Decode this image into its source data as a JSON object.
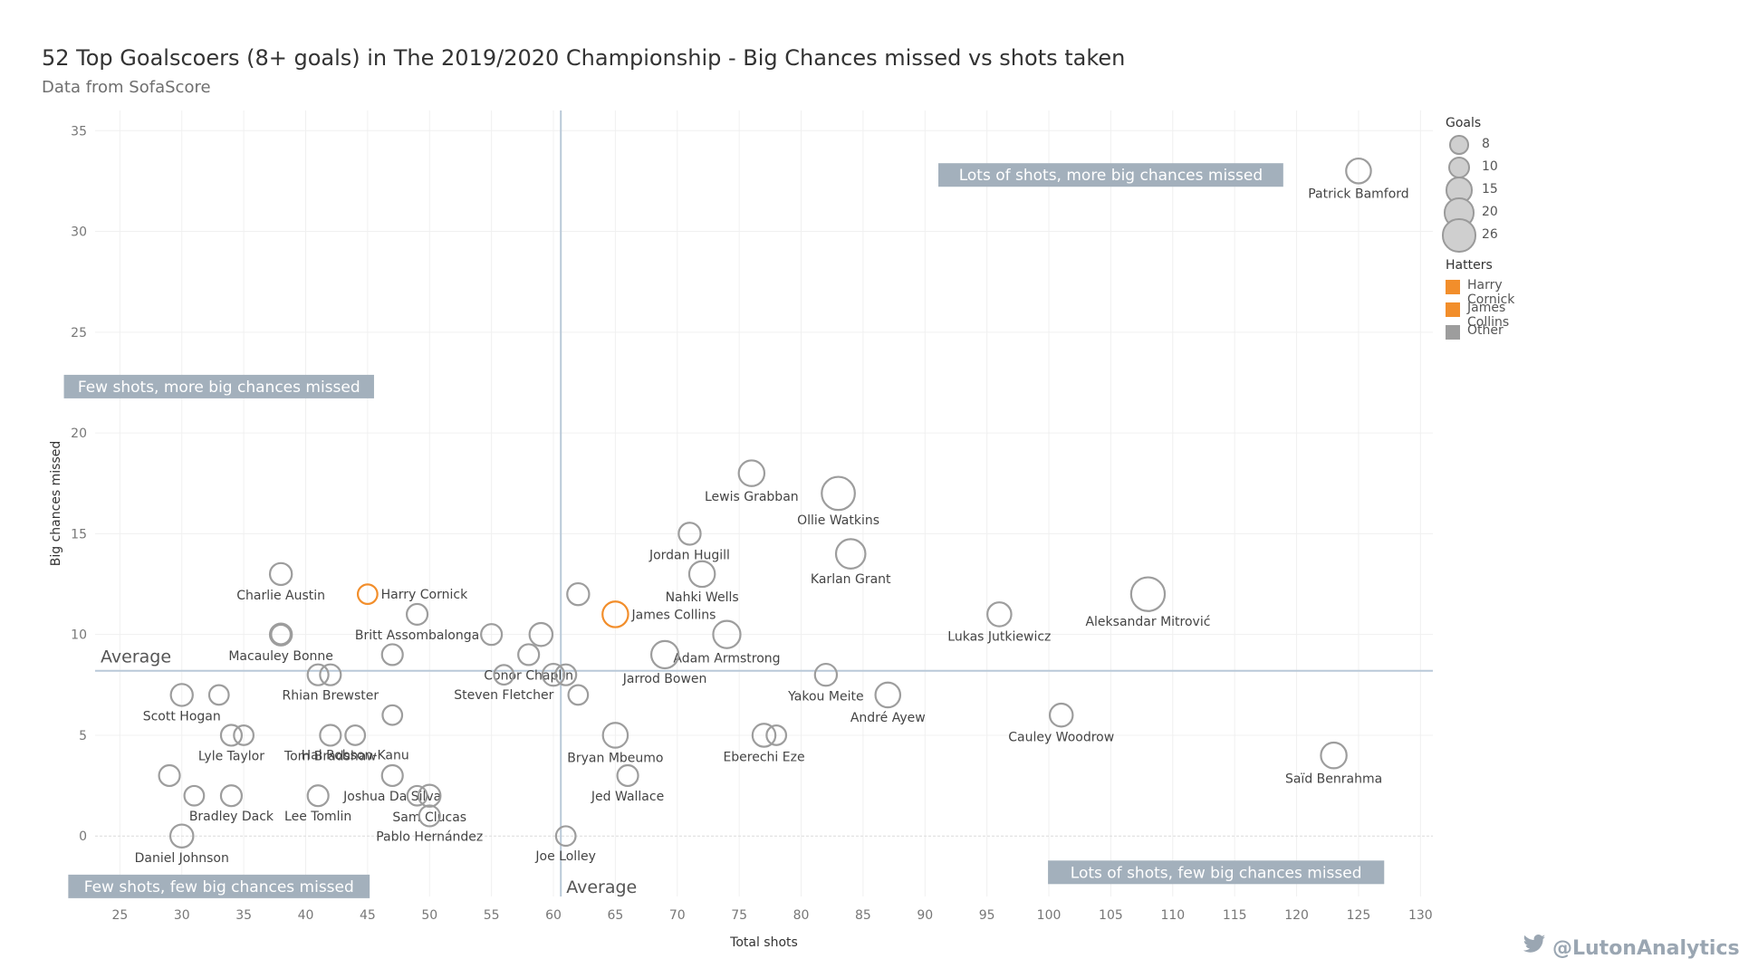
{
  "title": "52 Top Goalscoers (8+ goals) in The 2019/2020 Championship - Big Chances missed vs shots taken",
  "subtitle": "Data from SofaScore",
  "credit": "@LutonAnalytics",
  "legend": {
    "size_title": "Goals",
    "sizes": [
      {
        "label": "8",
        "goals": 8
      },
      {
        "label": "10",
        "goals": 10
      },
      {
        "label": "15",
        "goals": 15
      },
      {
        "label": "20",
        "goals": 20
      },
      {
        "label": "26",
        "goals": 26
      }
    ],
    "color_title": "Hatters",
    "colors": [
      {
        "label": "Harry Cornick",
        "color": "#f28e2b"
      },
      {
        "label": "James Collins",
        "color": "#f28e2b"
      },
      {
        "label": "Other",
        "color": "#9d9d9d"
      }
    ]
  },
  "chart_data": {
    "type": "scatter",
    "title": "52 Top Goalscoers (8+ goals) in The 2019/2020 Championship - Big Chances missed vs shots taken",
    "subtitle": "Data from SofaScore",
    "xlabel": "Total shots",
    "ylabel": "Big chances missed",
    "xlim": [
      23,
      131
    ],
    "ylim": [
      -3,
      36
    ],
    "xticks": [
      25,
      30,
      35,
      40,
      45,
      50,
      55,
      60,
      65,
      70,
      75,
      80,
      85,
      90,
      95,
      100,
      105,
      110,
      115,
      120,
      125,
      130
    ],
    "yticks": [
      0,
      5,
      10,
      15,
      20,
      25,
      30,
      35
    ],
    "grid": true,
    "average_lines": {
      "x": 60.6,
      "y": 8.2,
      "x_label": "Average",
      "y_label": "Average"
    },
    "quadrant_labels": [
      {
        "text": "Lots of shots, more big chances missed",
        "x": 105,
        "y": 32.8
      },
      {
        "text": "Few shots, more big chances missed",
        "x": 33,
        "y": 22.3
      },
      {
        "text": "Few shots, few big chances missed",
        "x": 33,
        "y": -2.5
      },
      {
        "text": "Lots of shots, few big chances missed",
        "x": 113.5,
        "y": -1.8
      }
    ],
    "accent_color": "#f28e2b",
    "other_color": "#9d9d9d",
    "points": [
      {
        "x": 125,
        "y": 33,
        "goals": 13,
        "label": "Patrick Bamford",
        "hatter": false
      },
      {
        "x": 76,
        "y": 18,
        "goals": 14,
        "label": "Lewis Grabban",
        "hatter": false
      },
      {
        "x": 83,
        "y": 17,
        "goals": 25,
        "label": "Ollie Watkins",
        "hatter": false
      },
      {
        "x": 71,
        "y": 15,
        "goals": 10,
        "label": "Jordan Hugill",
        "hatter": false
      },
      {
        "x": 84,
        "y": 14,
        "goals": 19,
        "label": "Karlan Grant",
        "hatter": false
      },
      {
        "x": 72,
        "y": 13,
        "goals": 14,
        "label": "Nahki Wells",
        "hatter": false
      },
      {
        "x": 38,
        "y": 13,
        "goals": 10,
        "label": "Charlie Austin",
        "hatter": false
      },
      {
        "x": 45,
        "y": 12,
        "goals": 8,
        "label": "Harry Cornick",
        "hatter": true
      },
      {
        "x": 62,
        "y": 12,
        "goals": 10,
        "label": "",
        "hatter": false
      },
      {
        "x": 108,
        "y": 12,
        "goals": 26,
        "label": "Aleksandar Mitrović",
        "hatter": false
      },
      {
        "x": 65,
        "y": 11,
        "goals": 14,
        "label": "James Collins",
        "hatter": true
      },
      {
        "x": 49,
        "y": 11,
        "goals": 9,
        "label": "Britt Assombalonga",
        "hatter": false
      },
      {
        "x": 96,
        "y": 11,
        "goals": 12,
        "label": "Lukas Jutkiewicz",
        "hatter": false
      },
      {
        "x": 38,
        "y": 10,
        "goals": 10,
        "label": "Macauley Bonne",
        "hatter": false
      },
      {
        "x": 55,
        "y": 10,
        "goals": 9,
        "label": "",
        "hatter": false
      },
      {
        "x": 59,
        "y": 10,
        "goals": 11,
        "label": "",
        "hatter": false
      },
      {
        "x": 74,
        "y": 10,
        "goals": 16,
        "label": "Adam Armstrong",
        "hatter": false
      },
      {
        "x": 47,
        "y": 9,
        "goals": 9,
        "label": "",
        "hatter": false
      },
      {
        "x": 58,
        "y": 9,
        "goals": 9,
        "label": "Conor Chaplin",
        "hatter": false
      },
      {
        "x": 69,
        "y": 9,
        "goals": 16,
        "label": "Jarrod Bowen",
        "hatter": false
      },
      {
        "x": 41,
        "y": 8,
        "goals": 9,
        "label": "",
        "hatter": false
      },
      {
        "x": 42,
        "y": 8,
        "goals": 9,
        "label": "Rhian Brewster",
        "hatter": false
      },
      {
        "x": 56,
        "y": 8,
        "goals": 8,
        "label": "Steven Fletcher",
        "hatter": false
      },
      {
        "x": 60,
        "y": 8,
        "goals": 10,
        "label": "",
        "hatter": false
      },
      {
        "x": 61,
        "y": 8,
        "goals": 9,
        "label": "",
        "hatter": false
      },
      {
        "x": 82,
        "y": 8,
        "goals": 10,
        "label": "Yakou Meite",
        "hatter": false
      },
      {
        "x": 30,
        "y": 7,
        "goals": 10,
        "label": "Scott Hogan",
        "hatter": false
      },
      {
        "x": 33,
        "y": 7,
        "goals": 8,
        "label": "",
        "hatter": false
      },
      {
        "x": 62,
        "y": 7,
        "goals": 8,
        "label": "",
        "hatter": false
      },
      {
        "x": 87,
        "y": 7,
        "goals": 13,
        "label": "André Ayew",
        "hatter": false
      },
      {
        "x": 47,
        "y": 6,
        "goals": 8,
        "label": "",
        "hatter": false
      },
      {
        "x": 101,
        "y": 6,
        "goals": 11,
        "label": "Cauley Woodrow",
        "hatter": false
      },
      {
        "x": 34,
        "y": 5,
        "goals": 9,
        "label": "Lyle Taylor",
        "hatter": false
      },
      {
        "x": 35,
        "y": 5,
        "goals": 8,
        "label": "",
        "hatter": false
      },
      {
        "x": 42,
        "y": 5,
        "goals": 9,
        "label": "Tom Bradshaw",
        "hatter": false
      },
      {
        "x": 65,
        "y": 5,
        "goals": 13,
        "label": "Bryan Mbeumo",
        "hatter": false
      },
      {
        "x": 77,
        "y": 5,
        "goals": 11,
        "label": "Eberechi Eze",
        "hatter": false
      },
      {
        "x": 78,
        "y": 5,
        "goals": 8,
        "label": "",
        "hatter": false
      },
      {
        "x": 123,
        "y": 4,
        "goals": 14,
        "label": "Saïd Benrahma",
        "hatter": false
      },
      {
        "x": 29,
        "y": 3,
        "goals": 9,
        "label": "",
        "hatter": false
      },
      {
        "x": 47,
        "y": 3,
        "goals": 9,
        "label": "Joshua Da Silva",
        "hatter": false
      },
      {
        "x": 66,
        "y": 3,
        "goals": 9,
        "label": "Jed Wallace",
        "hatter": false
      },
      {
        "x": 31,
        "y": 2,
        "goals": 8,
        "label": "",
        "hatter": false
      },
      {
        "x": 34,
        "y": 2,
        "goals": 9,
        "label": "Bradley Dack",
        "hatter": false
      },
      {
        "x": 41,
        "y": 2,
        "goals": 9,
        "label": "Lee Tomlin",
        "hatter": false
      },
      {
        "x": 49,
        "y": 2,
        "goals": 8,
        "label": "",
        "hatter": false
      },
      {
        "x": 50,
        "y": 2,
        "goals": 10,
        "label": "Sam Clucas",
        "hatter": false
      },
      {
        "x": 50,
        "y": 1,
        "goals": 9,
        "label": "Pablo Hernández",
        "hatter": false
      },
      {
        "x": 30,
        "y": 0,
        "goals": 11,
        "label": "Daniel Johnson",
        "hatter": false
      },
      {
        "x": 61,
        "y": 0,
        "goals": 8,
        "label": "Joe Lolley",
        "hatter": false
      },
      {
        "x": 38,
        "y": 10,
        "goals": 8,
        "label": "",
        "hatter": false
      },
      {
        "x": 44,
        "y": 5,
        "goals": 8,
        "label": "Hal Robson-Kanu",
        "hatter": false
      }
    ]
  }
}
